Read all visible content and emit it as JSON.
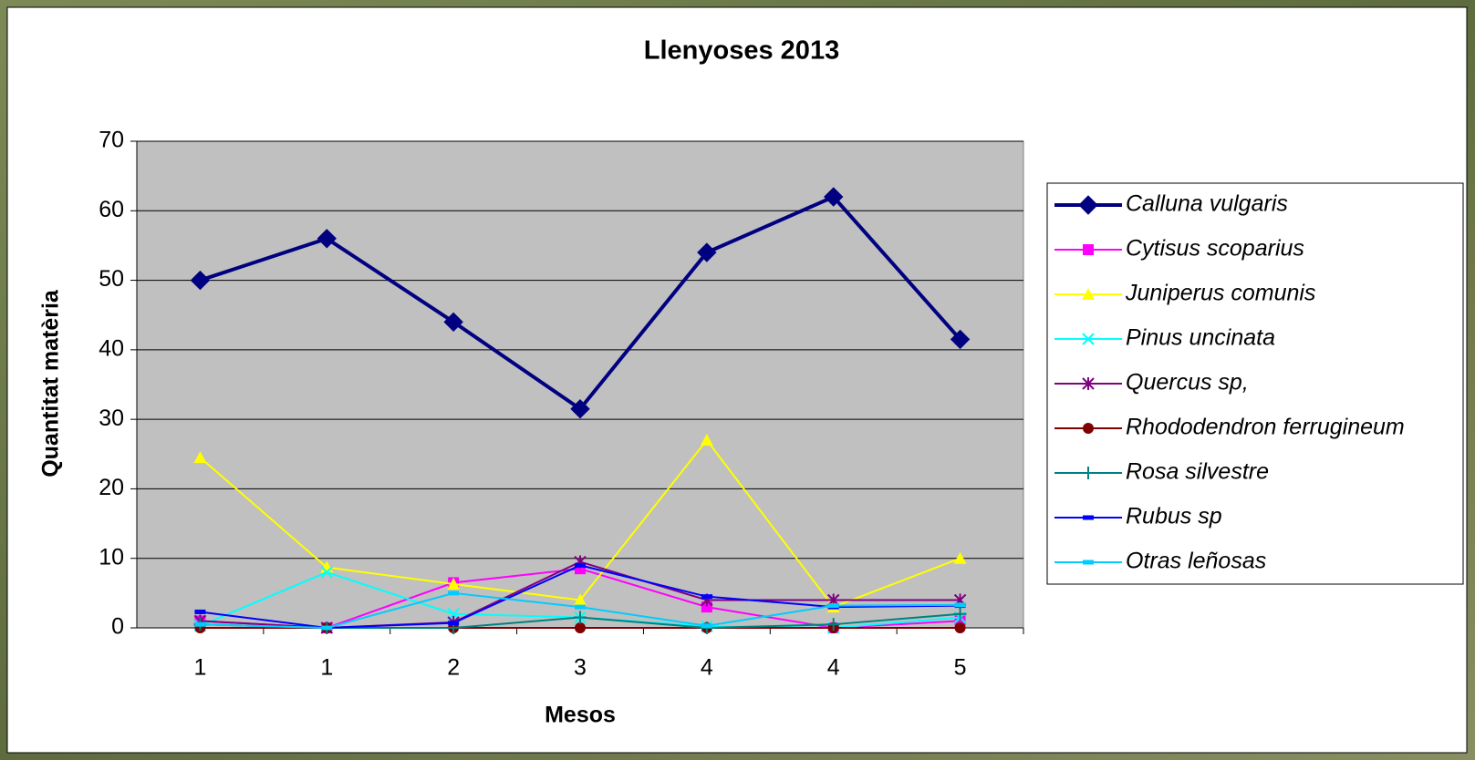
{
  "chart_data": {
    "type": "line",
    "title": "Llenyoses 2013",
    "x_label": "Mesos",
    "y_label": "Quantitat matèria",
    "categories": [
      "1",
      "1",
      "2",
      "3",
      "4",
      "4",
      "5"
    ],
    "ylim": [
      0,
      70
    ],
    "yticks": [
      0,
      10,
      20,
      30,
      40,
      50,
      60,
      70
    ],
    "grid": true,
    "legend": "right",
    "series": [
      {
        "name": "Calluna vulgaris",
        "color": "#000080",
        "marker": "diamond",
        "values": [
          50,
          56,
          44,
          31.5,
          54,
          62,
          41.5
        ]
      },
      {
        "name": "Cytisus scoparius",
        "color": "#ff00ff",
        "marker": "square",
        "values": [
          1,
          0,
          6.5,
          8.5,
          3,
          0,
          1
        ]
      },
      {
        "name": "Juniperus comunis",
        "color": "#ffff00",
        "marker": "triangle",
        "values": [
          24.5,
          8.7,
          6.3,
          4,
          27,
          3,
          10
        ]
      },
      {
        "name": "Pinus uncinata",
        "color": "#00ffff",
        "marker": "x",
        "values": [
          0.3,
          8,
          2,
          1.5,
          0.2,
          0,
          1.5
        ]
      },
      {
        "name": "Quercus sp,",
        "color": "#800080",
        "marker": "asterisk",
        "values": [
          1,
          0,
          0.8,
          9.5,
          4,
          4,
          4
        ]
      },
      {
        "name": "Rhododendron ferrugineum",
        "color": "#800000",
        "marker": "circle",
        "values": [
          0,
          0,
          0,
          0,
          0,
          0,
          0
        ]
      },
      {
        "name": "Rosa silvestre",
        "color": "#008080",
        "marker": "plus",
        "values": [
          0.5,
          0,
          0,
          1.5,
          0,
          0.5,
          2
        ]
      },
      {
        "name": "Rubus sp",
        "color": "#0000ff",
        "marker": "dash",
        "values": [
          2.3,
          0,
          0.7,
          9,
          4.5,
          3,
          3.2
        ]
      },
      {
        "name": "Otras leñosas",
        "color": "#00ccff",
        "marker": "dash",
        "values": [
          0.5,
          0,
          5,
          3,
          0.3,
          3.2,
          3.3
        ]
      }
    ]
  }
}
